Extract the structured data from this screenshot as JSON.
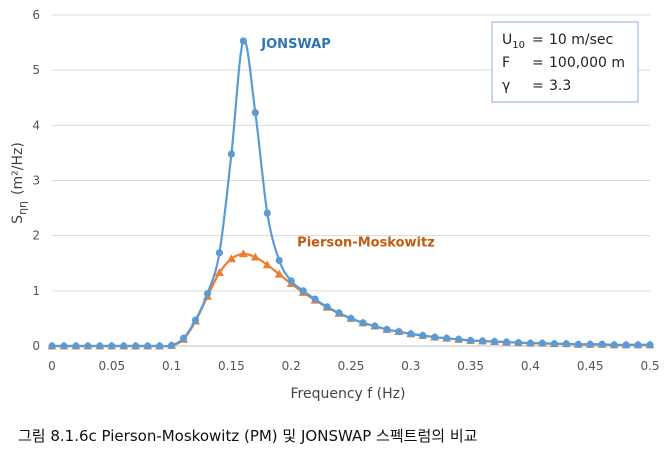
{
  "chart_data": {
    "type": "line",
    "xlabel": "Frequency f (Hz)",
    "ylabel": "S",
    "ylabel_subscript": "ηη",
    "ylabel_units": "(m²/Hz)",
    "xlim": [
      0,
      0.5
    ],
    "ylim": [
      0,
      6
    ],
    "x_ticks": [
      0,
      0.05,
      0.1,
      0.15,
      0.2,
      0.25,
      0.3,
      0.35,
      0.4,
      0.45,
      0.5
    ],
    "x_tick_labels": [
      "0",
      "0.05",
      "0.1",
      "0.15",
      "0.2",
      "0.25",
      "0.3",
      "0.35",
      "0.4",
      "0.45",
      "0.5"
    ],
    "y_ticks": [
      0,
      1,
      2,
      3,
      4,
      5,
      6
    ],
    "y_tick_labels": [
      "0",
      "1",
      "2",
      "3",
      "4",
      "5",
      "6"
    ],
    "grid": "horizontal",
    "series": [
      {
        "name": "JONSWAP",
        "color": "#5b9bd5",
        "marker": "circle",
        "x": [
          0,
          0.01,
          0.02,
          0.03,
          0.04,
          0.05,
          0.06,
          0.07,
          0.08,
          0.09,
          0.1,
          0.11,
          0.12,
          0.13,
          0.14,
          0.15,
          0.16,
          0.17,
          0.18,
          0.19,
          0.2,
          0.21,
          0.22,
          0.23,
          0.24,
          0.25,
          0.26,
          0.27,
          0.28,
          0.29,
          0.3,
          0.31,
          0.32,
          0.33,
          0.34,
          0.35,
          0.36,
          0.37,
          0.38,
          0.39,
          0.4,
          0.41,
          0.42,
          0.43,
          0.44,
          0.45,
          0.46,
          0.47,
          0.48,
          0.49,
          0.5
        ],
        "values": [
          0,
          0,
          0,
          0,
          0,
          0,
          0,
          0,
          0,
          0,
          0.01,
          0.14,
          0.47,
          0.95,
          1.69,
          3.48,
          5.53,
          4.23,
          2.41,
          1.55,
          1.18,
          1.0,
          0.85,
          0.71,
          0.6,
          0.5,
          0.42,
          0.36,
          0.3,
          0.26,
          0.22,
          0.19,
          0.16,
          0.14,
          0.12,
          0.1,
          0.09,
          0.08,
          0.07,
          0.06,
          0.05,
          0.05,
          0.04,
          0.04,
          0.03,
          0.03,
          0.03,
          0.02,
          0.02,
          0.02,
          0.02
        ]
      },
      {
        "name": "Pierson-Moskowitz",
        "color": "#ed7d31",
        "marker": "triangle",
        "x": [
          0,
          0.01,
          0.02,
          0.03,
          0.04,
          0.05,
          0.06,
          0.07,
          0.08,
          0.09,
          0.1,
          0.11,
          0.12,
          0.13,
          0.14,
          0.15,
          0.16,
          0.17,
          0.18,
          0.19,
          0.2,
          0.21,
          0.22,
          0.23,
          0.24,
          0.25,
          0.26,
          0.27,
          0.28,
          0.29,
          0.3,
          0.31,
          0.32,
          0.33,
          0.34,
          0.35,
          0.36,
          0.37,
          0.38,
          0.39,
          0.4,
          0.41,
          0.42,
          0.43,
          0.44,
          0.45,
          0.46,
          0.47,
          0.48,
          0.49,
          0.5
        ],
        "values": [
          0,
          0,
          0,
          0,
          0,
          0,
          0,
          0,
          0,
          0,
          0.01,
          0.12,
          0.45,
          0.9,
          1.33,
          1.58,
          1.67,
          1.61,
          1.47,
          1.3,
          1.13,
          0.97,
          0.83,
          0.7,
          0.59,
          0.5,
          0.42,
          0.36,
          0.3,
          0.26,
          0.22,
          0.19,
          0.16,
          0.14,
          0.12,
          0.1,
          0.09,
          0.08,
          0.07,
          0.06,
          0.05,
          0.05,
          0.04,
          0.04,
          0.03,
          0.03,
          0.03,
          0.02,
          0.02,
          0.02,
          0.02
        ]
      }
    ],
    "series_labels": [
      {
        "text": "JONSWAP",
        "color": "#2e75b6",
        "anchor": [
          0.175,
          5.4
        ]
      },
      {
        "text": "Pierson-Moskowitz",
        "color": "#c55a11",
        "anchor": [
          0.205,
          1.8
        ]
      }
    ],
    "legend_box": {
      "lines": [
        {
          "symbol": "U",
          "subscript": "10",
          "sep": "=",
          "value": "10 m/sec"
        },
        {
          "symbol": "F",
          "subscript": "",
          "sep": "=",
          "value": "100,000 m"
        },
        {
          "symbol": "γ",
          "subscript": "",
          "sep": "=",
          "value": "3.3"
        }
      ],
      "position": "top-right"
    }
  },
  "caption": "그림 8.1.6c Pierson-Moskowitz (PM) 및 JONSWAP 스펙트럼의 비교"
}
